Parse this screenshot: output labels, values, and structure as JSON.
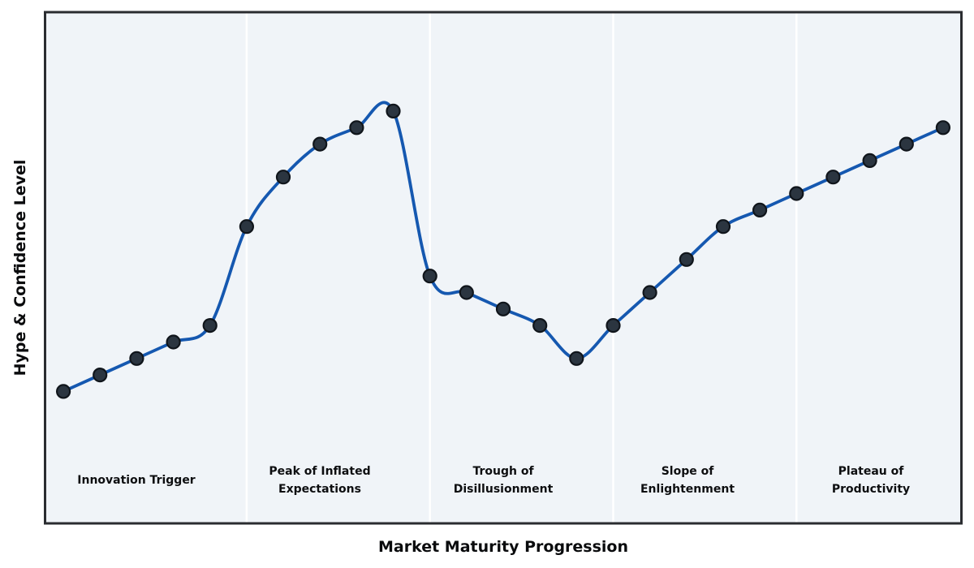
{
  "chart_data": {
    "type": "line",
    "title": "",
    "xlabel": "Market Maturity Progression",
    "ylabel": "Hype & Confidence Level",
    "x": [
      0,
      1,
      2,
      3,
      4,
      5,
      6,
      7,
      8,
      9,
      10,
      11,
      12,
      13,
      14,
      15,
      16,
      17,
      18,
      19,
      20,
      21,
      22,
      23,
      24
    ],
    "values": [
      0,
      5,
      10,
      15,
      20,
      50,
      65,
      75,
      80,
      85,
      35,
      30,
      25,
      20,
      10,
      20,
      30,
      40,
      50,
      55,
      60,
      65,
      70,
      75,
      80
    ],
    "xlim": [
      -0.5,
      24.5
    ],
    "ylim": [
      -40,
      115
    ],
    "smoothing": "cubic-spline",
    "markers": true,
    "grid": false,
    "legend": false,
    "separators_x": [
      5,
      10,
      15,
      20
    ],
    "phases": [
      {
        "label": "Innovation Trigger",
        "start": -0.5,
        "end": 5,
        "label_x": 2
      },
      {
        "label": "Peak of Inflated\nExpectations",
        "start": 5,
        "end": 10,
        "label_x": 7
      },
      {
        "label": "Trough of\nDisillusionment",
        "start": 10,
        "end": 15,
        "label_x": 12
      },
      {
        "label": "Slope of\nEnlightenment",
        "start": 15,
        "end": 20,
        "label_x": 17
      },
      {
        "label": "Plateau of\nProductivity",
        "start": 20,
        "end": 24.5,
        "label_x": 22
      }
    ],
    "colors": {
      "page_bg": "#ffffff",
      "plot_bg": "#f0f4f8",
      "border": "#2a2c30",
      "separator": "#ffffff",
      "line": "#1558b0",
      "marker_fill": "#2b3540",
      "marker_edge": "#10151b",
      "text": "#0d0e10"
    }
  }
}
